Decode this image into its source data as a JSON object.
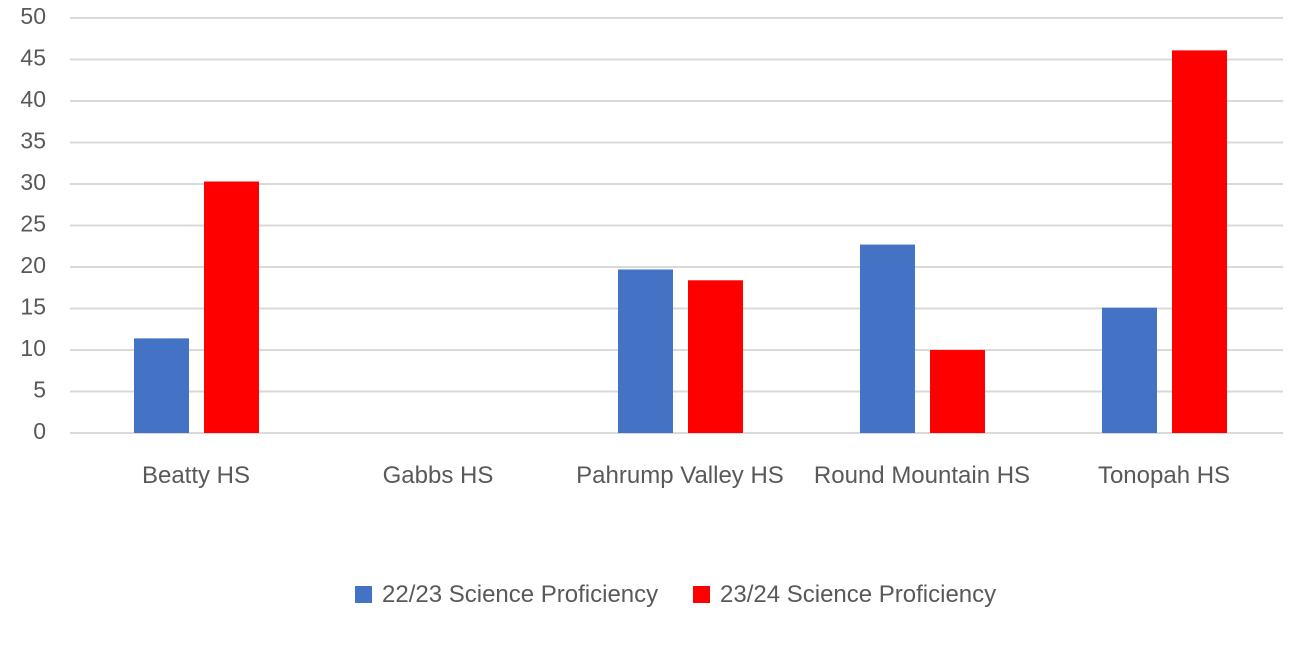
{
  "chart_data": {
    "type": "bar",
    "categories": [
      "Beatty HS",
      "Gabbs HS",
      "Pahrump Valley HS",
      "Round Mountain HS",
      "Tonopah HS"
    ],
    "series": [
      {
        "name": "22/23 Science Proficiency",
        "color": "#4472c4",
        "values": [
          11.4,
          null,
          19.7,
          22.7,
          15.1
        ]
      },
      {
        "name": "23/24 Science Proficiency",
        "color": "#ff0000",
        "values": [
          30.3,
          null,
          18.4,
          10,
          46.1
        ]
      }
    ],
    "ylim": [
      0,
      50
    ],
    "yticks": [
      0,
      5,
      10,
      15,
      20,
      25,
      30,
      35,
      40,
      45,
      50
    ],
    "grid": true,
    "legend": "bottom"
  }
}
